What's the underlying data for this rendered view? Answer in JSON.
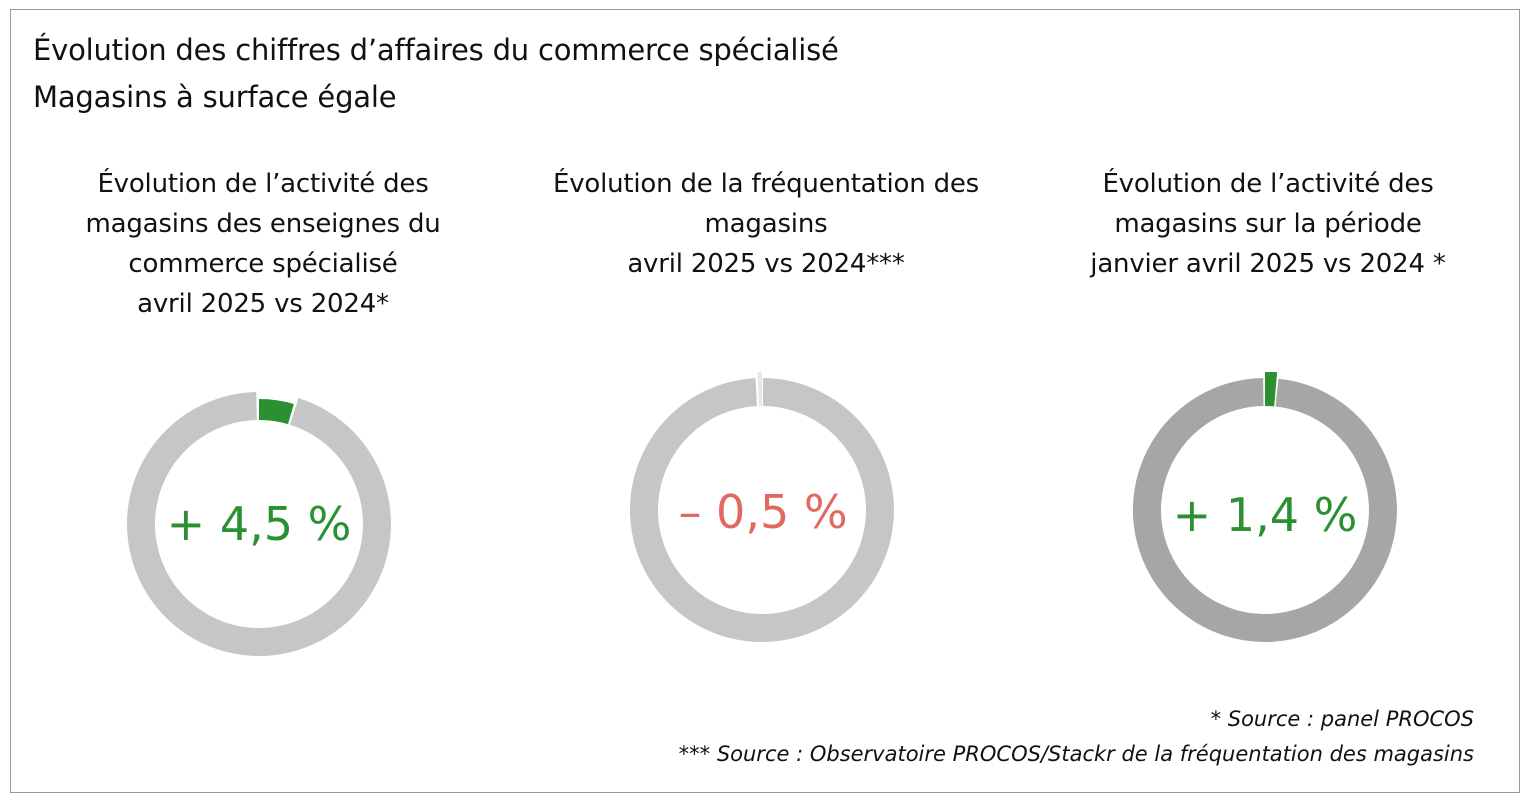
{
  "title": "Évolution des chiffres d’affaires du commerce spécialisé",
  "subtitle": "Magasins à surface égale",
  "colors": {
    "positive": "#2a9032",
    "negative": "#e06a62",
    "ring_light": "#c6c6c6",
    "ring_dark": "#a6a6a6",
    "text": "#111111"
  },
  "chart_data": [
    {
      "type": "pie",
      "title_lines": [
        "Évolution de l’activité des",
        "magasins des enseignes du",
        "commerce spécialisé",
        "avril 2025 vs 2024*"
      ],
      "value": 4.5,
      "label": "+ 4,5 %",
      "unit": "%",
      "sign": "positive"
    },
    {
      "type": "pie",
      "title_lines": [
        "Évolution de la fréquentation des",
        "magasins",
        "avril 2025 vs 2024***"
      ],
      "value": -0.5,
      "label": "– 0,5 %",
      "unit": "%",
      "sign": "negative"
    },
    {
      "type": "pie",
      "title_lines": [
        "Évolution de l’activité des",
        "magasins sur la période",
        "janvier avril 2025 vs 2024 *"
      ],
      "value": 1.4,
      "label": "+ 1,4 %",
      "unit": "%",
      "sign": "positive"
    }
  ],
  "sources": [
    "* Source : panel PROCOS",
    "*** Source : Observatoire PROCOS/Stackr de la fréquentation des magasins"
  ]
}
